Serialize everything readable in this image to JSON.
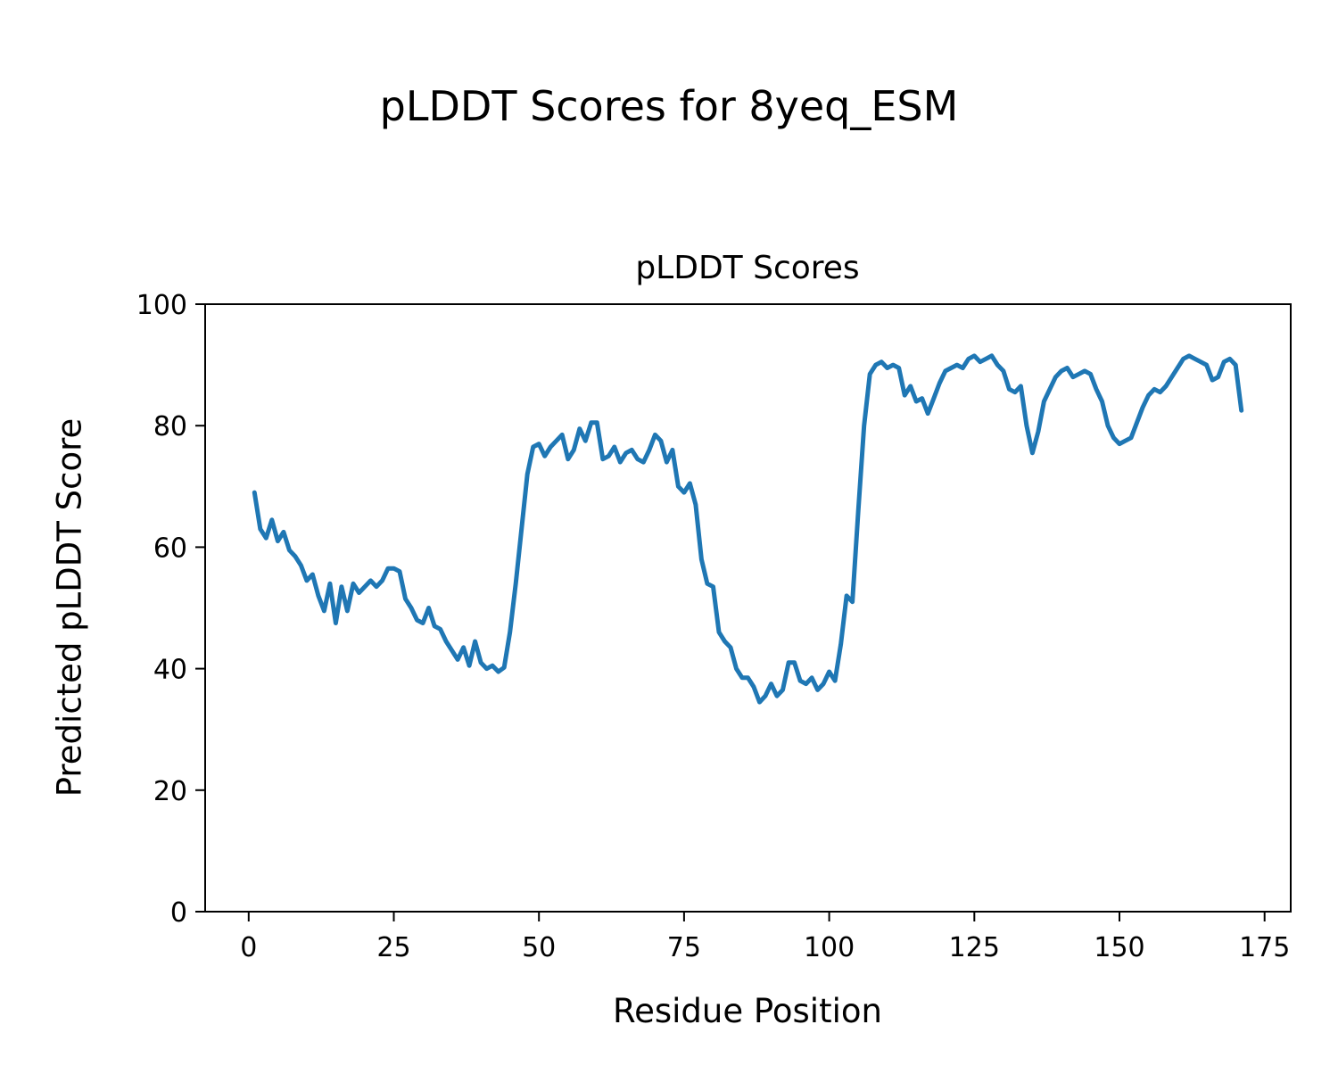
{
  "figure": {
    "suptitle": "pLDDT Scores for 8yeq_ESM",
    "background_color": "#ffffff"
  },
  "chart_data": {
    "type": "line",
    "title": "pLDDT Scores",
    "xlabel": "Residue Position",
    "ylabel": "Predicted pLDDT Score",
    "line_color": "#1f77b4",
    "grid": false,
    "legend": "none",
    "xlim": [
      -7.5,
      179.5
    ],
    "ylim": [
      0,
      100
    ],
    "xticks": [
      0,
      25,
      50,
      75,
      100,
      125,
      150,
      175
    ],
    "yticks": [
      0,
      20,
      40,
      60,
      80,
      100
    ],
    "x_start": 1,
    "x_step": 1,
    "values": [
      69,
      63,
      61.5,
      64.5,
      61,
      62.5,
      59.5,
      58.5,
      57,
      54.5,
      55.5,
      52,
      49.5,
      54,
      47.5,
      53.5,
      49.5,
      54,
      52.5,
      53.5,
      54.5,
      53.5,
      54.5,
      56.5,
      56.5,
      56,
      51.5,
      50,
      48,
      47.5,
      50,
      47,
      46.5,
      44.5,
      43,
      41.5,
      43.5,
      40.5,
      44.5,
      41,
      40,
      40.5,
      39.5,
      40.2,
      46,
      54,
      63,
      72,
      76.5,
      77,
      75,
      76.5,
      77.5,
      78.5,
      74.5,
      76,
      79.5,
      77.5,
      80.5,
      80.5,
      74.5,
      75,
      76.5,
      74,
      75.5,
      76,
      74.5,
      74,
      76,
      78.5,
      77.5,
      74,
      76,
      70,
      69,
      70.5,
      67,
      58,
      54,
      53.5,
      46,
      44.5,
      43.5,
      40,
      38.5,
      38.5,
      37,
      34.5,
      35.5,
      37.5,
      35.5,
      36.5,
      41,
      41,
      38,
      37.5,
      38.5,
      36.5,
      37.5,
      39.5,
      38,
      44,
      52,
      51,
      66,
      80,
      88.5,
      90,
      90.5,
      89.5,
      90,
      89.5,
      85,
      86.5,
      84,
      84.5,
      82,
      84.5,
      87,
      89,
      89.5,
      90,
      89.5,
      91,
      91.5,
      90.5,
      91,
      91.5,
      90,
      89,
      86,
      85.5,
      86.5,
      80,
      75.5,
      79,
      84,
      86,
      88,
      89,
      89.5,
      88,
      88.5,
      89,
      88.5,
      86,
      84,
      80,
      78,
      77,
      77.5,
      78,
      80.5,
      83,
      85,
      86,
      85.5,
      86.5,
      88,
      89.5,
      91,
      91.5,
      91,
      90.5,
      90,
      87.5,
      88,
      90.5,
      91,
      90,
      82.5
    ]
  }
}
